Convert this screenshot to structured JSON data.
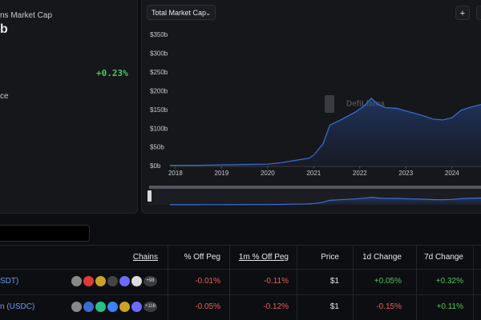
{
  "summary": {
    "title": "ns Market Cap",
    "value": "b",
    "change": "+0.23%",
    "dominance_label": "ce"
  },
  "chart": {
    "type": "area",
    "dropdown": "Total Market Cap",
    "buttons": [
      "+"
    ],
    "watermark": "DefiLlama",
    "color": "#3b6fd6",
    "x": [
      2017.88,
      2018.5,
      2019,
      2019.5,
      2020,
      2020.3,
      2020.6,
      2020.9,
      2021.0,
      2021.2,
      2021.35,
      2021.6,
      2021.9,
      2022.1,
      2022.25,
      2022.4,
      2022.55,
      2022.8,
      2023.0,
      2023.3,
      2023.6,
      2023.8,
      2024.0,
      2024.2,
      2024.4,
      2024.63
    ],
    "values": [
      3,
      3,
      4,
      5,
      6,
      10,
      16,
      22,
      30,
      60,
      110,
      125,
      145,
      162,
      182,
      165,
      157,
      155,
      148,
      138,
      126,
      124,
      130,
      150,
      158,
      165
    ],
    "xlim": [
      2017.88,
      2024.63
    ],
    "ylim": [
      0,
      350
    ],
    "xticks": [
      2018,
      2019,
      2020,
      2021,
      2022,
      2023,
      2024
    ],
    "yticks": [
      {
        "value": 0,
        "label": "$0b"
      },
      {
        "value": 50,
        "label": "$50b"
      },
      {
        "value": 100,
        "label": "$100b"
      },
      {
        "value": 150,
        "label": "$150b"
      },
      {
        "value": 200,
        "label": "$200b"
      },
      {
        "value": 250,
        "label": "$250b"
      },
      {
        "value": 300,
        "label": "$300b"
      },
      {
        "value": 350,
        "label": "$350b"
      }
    ]
  },
  "table": {
    "headers": [
      "Chains",
      "% Off Peg",
      "1m % Off Peg",
      "Price",
      "1d Change",
      "7d Change"
    ],
    "rows": [
      {
        "name": "SDT)",
        "chains_more": "+98",
        "cells": [
          "-0.01%",
          "-0.11%",
          "$1",
          "+0.05%",
          "+0.32%"
        ]
      },
      {
        "name": "n (USDC)",
        "chains_more": "+116",
        "cells": [
          "-0.05%",
          "-0.12%",
          "$1",
          "-0.15%",
          "+0.11%"
        ]
      }
    ]
  }
}
